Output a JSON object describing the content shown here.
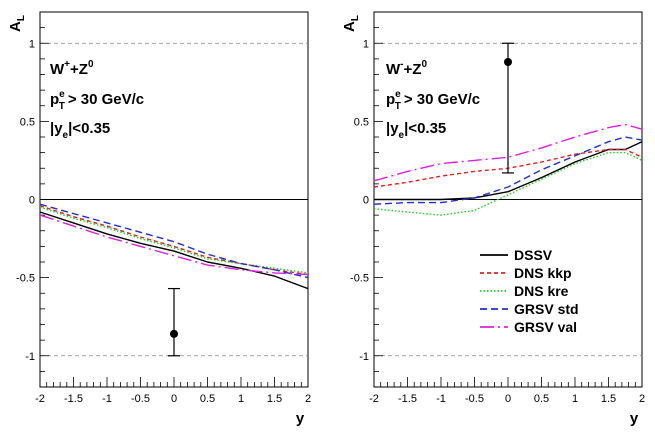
{
  "chart_data": [
    {
      "type": "line",
      "panel": "left",
      "xlabel": "y",
      "ylabel_main": "A",
      "ylabel_sub": "L",
      "xlim": [
        -2,
        2
      ],
      "ylim": [
        -1.2,
        1.2
      ],
      "x_ticks": [
        "-2",
        "-1.5",
        "-1",
        "-0.5",
        "0",
        "0.5",
        "1",
        "1.5",
        "2"
      ],
      "y_ticks": [
        "-1",
        "-0.5",
        "0",
        "0.5",
        "1"
      ],
      "annotations": {
        "process_main": "W",
        "process_sup": "+",
        "process_rest": "+Z",
        "process_sup2": "0",
        "pt_p": "p",
        "pt_sup": "e",
        "pt_sub": "T",
        "pt_rest": "> 30 GeV/c",
        "rap_bar": "|y",
        "rap_sub": "e",
        "rap_rest": "|<0.35"
      },
      "x": [
        -2,
        -1.5,
        -1,
        -0.5,
        0,
        0.5,
        1,
        1.5,
        2
      ],
      "series": [
        {
          "name": "DSSV",
          "values": [
            -0.08,
            -0.15,
            -0.22,
            -0.28,
            -0.33,
            -0.4,
            -0.44,
            -0.49,
            -0.57
          ]
        },
        {
          "name": "DNS kkp",
          "values": [
            -0.04,
            -0.11,
            -0.17,
            -0.24,
            -0.3,
            -0.37,
            -0.41,
            -0.45,
            -0.48
          ]
        },
        {
          "name": "DNS kre",
          "values": [
            -0.05,
            -0.12,
            -0.18,
            -0.25,
            -0.31,
            -0.38,
            -0.41,
            -0.44,
            -0.47
          ]
        },
        {
          "name": "GRSV std",
          "values": [
            -0.03,
            -0.09,
            -0.15,
            -0.21,
            -0.27,
            -0.35,
            -0.41,
            -0.45,
            -0.5
          ]
        },
        {
          "name": "GRSV val",
          "values": [
            -0.1,
            -0.17,
            -0.24,
            -0.3,
            -0.36,
            -0.42,
            -0.45,
            -0.47,
            -0.48
          ]
        }
      ],
      "data_point": {
        "x": 0,
        "y": -0.86,
        "err_low": -1.0,
        "err_high": -0.57
      }
    },
    {
      "type": "line",
      "panel": "right",
      "xlabel": "y",
      "ylabel_main": "A",
      "ylabel_sub": "L",
      "xlim": [
        -2,
        2
      ],
      "ylim": [
        -1.2,
        1.2
      ],
      "x_ticks": [
        "-2",
        "-1.5",
        "-1",
        "-0.5",
        "0",
        "0.5",
        "1",
        "1.5",
        "2"
      ],
      "y_ticks": [
        "-1",
        "-0.5",
        "0",
        "0.5",
        "1"
      ],
      "annotations": {
        "process_main": "W",
        "process_sup": "-",
        "process_rest": "+Z",
        "process_sup2": "0",
        "pt_p": "p",
        "pt_sup": "e",
        "pt_sub": "T",
        "pt_rest": "> 30 GeV/c",
        "rap_bar": "|y",
        "rap_sub": "e",
        "rap_rest": "|<0.35"
      },
      "x": [
        -2,
        -1.5,
        -1,
        -0.5,
        0,
        0.5,
        1,
        1.5,
        1.75,
        2
      ],
      "series": [
        {
          "name": "DSSV",
          "values": [
            0.0,
            0.0,
            0.0,
            0.01,
            0.05,
            0.14,
            0.24,
            0.32,
            0.32,
            0.37
          ]
        },
        {
          "name": "DNS kkp",
          "values": [
            0.08,
            0.11,
            0.15,
            0.18,
            0.2,
            0.24,
            0.29,
            0.32,
            0.32,
            0.27
          ]
        },
        {
          "name": "DNS kre",
          "values": [
            -0.06,
            -0.08,
            -0.1,
            -0.07,
            0.03,
            0.13,
            0.23,
            0.3,
            0.3,
            0.25
          ]
        },
        {
          "name": "GRSV std",
          "values": [
            -0.03,
            -0.02,
            -0.02,
            0.01,
            0.08,
            0.19,
            0.28,
            0.37,
            0.4,
            0.38
          ]
        },
        {
          "name": "GRSV val",
          "values": [
            0.12,
            0.18,
            0.23,
            0.25,
            0.27,
            0.33,
            0.4,
            0.46,
            0.48,
            0.45
          ]
        }
      ],
      "data_point": {
        "x": 0,
        "y": 0.88,
        "err_low": 0.17,
        "err_high": 1.0
      }
    }
  ],
  "legend": {
    "position": "bottom-right of right panel",
    "entries": [
      {
        "label": "DSSV",
        "color": "#000000",
        "dash": "solid"
      },
      {
        "label": "DNS kkp",
        "color": "#e02020",
        "dash": "short-dash"
      },
      {
        "label": "DNS kre",
        "color": "#22cc22",
        "dash": "dotted"
      },
      {
        "label": "GRSV std",
        "color": "#2030d0",
        "dash": "dashed"
      },
      {
        "label": "GRSV val",
        "color": "#e020e0",
        "dash": "long-dash"
      }
    ]
  }
}
